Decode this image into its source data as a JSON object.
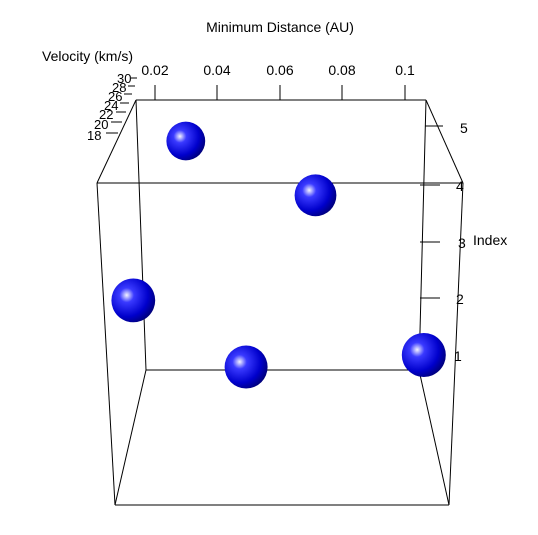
{
  "chart_data": {
    "type": "scatter",
    "dimensions": 3,
    "title": "",
    "axes": {
      "x": {
        "label": "Minimum Distance (AU)",
        "ticks": [
          "0.02",
          "0.04",
          "0.06",
          "0.08",
          "0.1"
        ]
      },
      "y": {
        "label": "Velocity (km/s)",
        "ticks": [
          "18",
          "20",
          "22",
          "24",
          "26",
          "28",
          "30"
        ]
      },
      "z": {
        "label": "Index",
        "ticks": [
          "1",
          "2",
          "3",
          "4",
          "5"
        ]
      }
    },
    "points": [
      {
        "min_distance_au": 0.013,
        "velocity_kms": 18.5,
        "index": 2.0
      },
      {
        "min_distance_au": 0.029,
        "velocity_kms": 28.5,
        "index": 5.0
      },
      {
        "min_distance_au": 0.049,
        "velocity_kms": 20.0,
        "index": 1.0
      },
      {
        "min_distance_au": 0.071,
        "velocity_kms": 22.5,
        "index": 4.0
      },
      {
        "min_distance_au": 0.106,
        "velocity_kms": 18.0,
        "index": 1.0
      }
    ],
    "point_color": "#0000ff",
    "box": true,
    "grid": false,
    "legend": "none"
  }
}
